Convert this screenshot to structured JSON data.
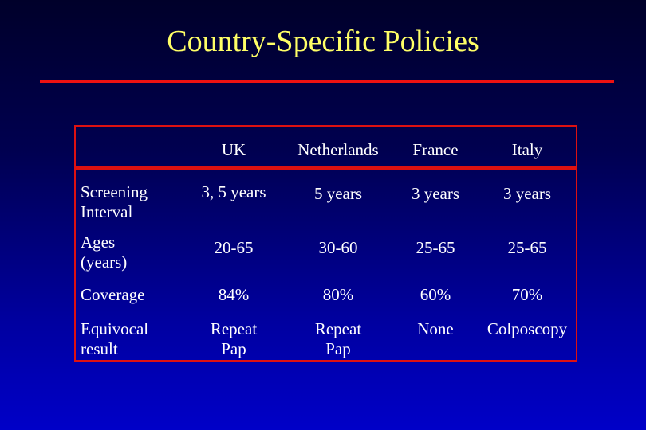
{
  "slide": {
    "title": "Country-Specific Policies"
  },
  "table": {
    "columns": [
      "UK",
      "Netherlands",
      "France",
      "Italy"
    ],
    "rows": [
      {
        "label_line1": "Screening",
        "label_line2": "Interval",
        "cells": [
          [
            "3, 5 years"
          ],
          [
            "5 years"
          ],
          [
            "3 years"
          ],
          [
            "3 years"
          ]
        ]
      },
      {
        "label_line1": "Ages",
        "label_line2": "(years)",
        "cells": [
          [
            "20-65"
          ],
          [
            "30-60"
          ],
          [
            "25-65"
          ],
          [
            "25-65"
          ]
        ]
      },
      {
        "label_line1": "Coverage",
        "label_line2": "",
        "cells": [
          [
            "84%"
          ],
          [
            "80%"
          ],
          [
            "60%"
          ],
          [
            "70%"
          ]
        ]
      },
      {
        "label_line1": "Equivocal",
        "label_line2": "result",
        "cells": [
          [
            "Repeat",
            "Pap"
          ],
          [
            "Repeat",
            "Pap"
          ],
          [
            "None"
          ],
          [
            "Colposcopy"
          ]
        ]
      }
    ]
  },
  "colors": {
    "title": "#ffff66",
    "rule": "#ee1111",
    "text": "#ffffff"
  }
}
